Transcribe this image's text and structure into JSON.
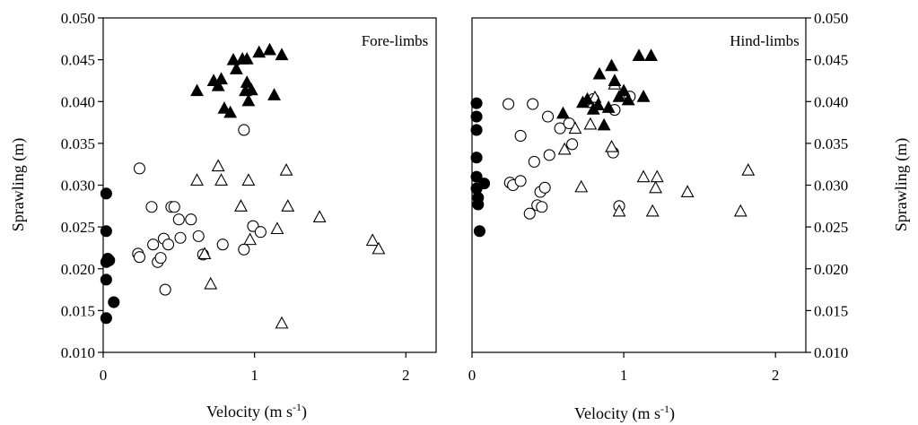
{
  "figure": {
    "ylabel_left": "Sprawling (m)",
    "ylabel_right": "Sprawling (m)",
    "xlabel_left": "Velocity (m s",
    "xlabel_right": "Velocity (m s",
    "xlabel_exponent": "-1",
    "xlabel_close": ")"
  },
  "chart_data": [
    {
      "type": "scatter",
      "title": "Fore-limbs",
      "xlim": [
        0,
        2.2
      ],
      "ylim": [
        0.01,
        0.05
      ],
      "xticks": [
        "0",
        "1",
        "2"
      ],
      "yticks": [
        "0.010",
        "0.015",
        "0.020",
        "0.025",
        "0.030",
        "0.035",
        "0.040",
        "0.045",
        "0.050"
      ],
      "grid": false,
      "series": [
        {
          "marker": "filled-circle",
          "points": [
            [
              0.02,
              0.029
            ],
            [
              0.02,
              0.0245
            ],
            [
              0.03,
              0.0212
            ],
            [
              0.04,
              0.021
            ],
            [
              0.02,
              0.0208
            ],
            [
              0.02,
              0.0187
            ],
            [
              0.07,
              0.016
            ],
            [
              0.02,
              0.0141
            ]
          ]
        },
        {
          "marker": "open-circle",
          "points": [
            [
              0.24,
              0.032
            ],
            [
              0.93,
              0.0366
            ],
            [
              0.32,
              0.0274
            ],
            [
              0.45,
              0.0274
            ],
            [
              0.23,
              0.0218
            ],
            [
              0.24,
              0.0214
            ],
            [
              0.33,
              0.0229
            ],
            [
              0.36,
              0.0208
            ],
            [
              0.38,
              0.0213
            ],
            [
              0.4,
              0.0236
            ],
            [
              0.43,
              0.0229
            ],
            [
              0.47,
              0.0274
            ],
            [
              0.5,
              0.0259
            ],
            [
              0.51,
              0.0237
            ],
            [
              0.58,
              0.0259
            ],
            [
              0.63,
              0.0239
            ],
            [
              0.66,
              0.0217
            ],
            [
              0.79,
              0.0229
            ],
            [
              0.93,
              0.0223
            ],
            [
              0.99,
              0.0251
            ],
            [
              1.04,
              0.0244
            ],
            [
              0.41,
              0.0175
            ]
          ]
        },
        {
          "marker": "open-triangle",
          "points": [
            [
              0.62,
              0.0306
            ],
            [
              0.76,
              0.0323
            ],
            [
              0.78,
              0.0306
            ],
            [
              0.96,
              0.0306
            ],
            [
              1.21,
              0.0318
            ],
            [
              1.22,
              0.0275
            ],
            [
              0.91,
              0.0275
            ],
            [
              0.97,
              0.0235
            ],
            [
              1.15,
              0.0248
            ],
            [
              1.43,
              0.0262
            ],
            [
              1.78,
              0.0234
            ],
            [
              1.82,
              0.0224
            ],
            [
              0.67,
              0.0218
            ],
            [
              0.71,
              0.0182
            ],
            [
              1.18,
              0.0135
            ]
          ]
        },
        {
          "marker": "filled-triangle",
          "points": [
            [
              0.62,
              0.0413
            ],
            [
              0.73,
              0.0425
            ],
            [
              0.76,
              0.0419
            ],
            [
              0.78,
              0.0427
            ],
            [
              0.8,
              0.0392
            ],
            [
              0.84,
              0.0387
            ],
            [
              0.86,
              0.045
            ],
            [
              0.88,
              0.0439
            ],
            [
              0.92,
              0.0451
            ],
            [
              0.95,
              0.0451
            ],
            [
              0.94,
              0.0413
            ],
            [
              0.95,
              0.0423
            ],
            [
              0.98,
              0.0414
            ],
            [
              0.96,
              0.0401
            ],
            [
              1.03,
              0.0459
            ],
            [
              1.1,
              0.0462
            ],
            [
              1.13,
              0.0408
            ],
            [
              1.18,
              0.0456
            ]
          ]
        }
      ]
    },
    {
      "type": "scatter",
      "title": "Hind-limbs",
      "xlim": [
        0,
        2.2
      ],
      "ylim": [
        0.01,
        0.05
      ],
      "xticks": [
        "0",
        "1",
        "2"
      ],
      "yticks": [
        "0.010",
        "0.015",
        "0.020",
        "0.025",
        "0.030",
        "0.035",
        "0.040",
        "0.045",
        "0.050"
      ],
      "yaxis_side": "right",
      "grid": false,
      "series": [
        {
          "marker": "filled-circle",
          "points": [
            [
              0.03,
              0.0398
            ],
            [
              0.03,
              0.0382
            ],
            [
              0.03,
              0.0366
            ],
            [
              0.03,
              0.0333
            ],
            [
              0.03,
              0.031
            ],
            [
              0.03,
              0.0296
            ],
            [
              0.04,
              0.0285
            ],
            [
              0.04,
              0.0277
            ],
            [
              0.08,
              0.0302
            ],
            [
              0.05,
              0.0245
            ]
          ]
        },
        {
          "marker": "open-circle",
          "points": [
            [
              0.24,
              0.0397
            ],
            [
              0.4,
              0.0397
            ],
            [
              0.32,
              0.0359
            ],
            [
              0.25,
              0.0303
            ],
            [
              0.27,
              0.03
            ],
            [
              0.32,
              0.0305
            ],
            [
              0.41,
              0.0328
            ],
            [
              0.45,
              0.0292
            ],
            [
              0.48,
              0.0297
            ],
            [
              0.5,
              0.0382
            ],
            [
              0.51,
              0.0336
            ],
            [
              0.58,
              0.0368
            ],
            [
              0.64,
              0.0374
            ],
            [
              0.66,
              0.0349
            ],
            [
              0.38,
              0.0266
            ],
            [
              0.43,
              0.0276
            ],
            [
              0.46,
              0.0274
            ],
            [
              0.8,
              0.0403
            ],
            [
              0.93,
              0.0339
            ],
            [
              0.94,
              0.039
            ],
            [
              1.04,
              0.0406
            ],
            [
              0.97,
              0.0275
            ]
          ]
        },
        {
          "marker": "open-triangle",
          "points": [
            [
              0.61,
              0.0343
            ],
            [
              0.68,
              0.0368
            ],
            [
              0.78,
              0.0373
            ],
            [
              0.8,
              0.0399
            ],
            [
              0.81,
              0.0405
            ],
            [
              0.92,
              0.0346
            ],
            [
              0.94,
              0.0421
            ],
            [
              0.72,
              0.0298
            ],
            [
              0.97,
              0.0269
            ],
            [
              1.13,
              0.031
            ],
            [
              1.19,
              0.0269
            ],
            [
              1.21,
              0.0297
            ],
            [
              1.22,
              0.031
            ],
            [
              1.42,
              0.0292
            ],
            [
              1.77,
              0.0269
            ],
            [
              1.82,
              0.0318
            ]
          ]
        },
        {
          "marker": "filled-triangle",
          "points": [
            [
              0.6,
              0.0386
            ],
            [
              0.73,
              0.0399
            ],
            [
              0.76,
              0.0403
            ],
            [
              0.8,
              0.0391
            ],
            [
              0.84,
              0.0433
            ],
            [
              0.87,
              0.0372
            ],
            [
              0.9,
              0.0393
            ],
            [
              0.92,
              0.0443
            ],
            [
              0.94,
              0.0425
            ],
            [
              0.97,
              0.0406
            ],
            [
              1.0,
              0.0413
            ],
            [
              1.03,
              0.0402
            ],
            [
              1.1,
              0.0455
            ],
            [
              1.13,
              0.0406
            ],
            [
              1.18,
              0.0455
            ],
            [
              0.83,
              0.0396
            ]
          ]
        }
      ]
    }
  ]
}
